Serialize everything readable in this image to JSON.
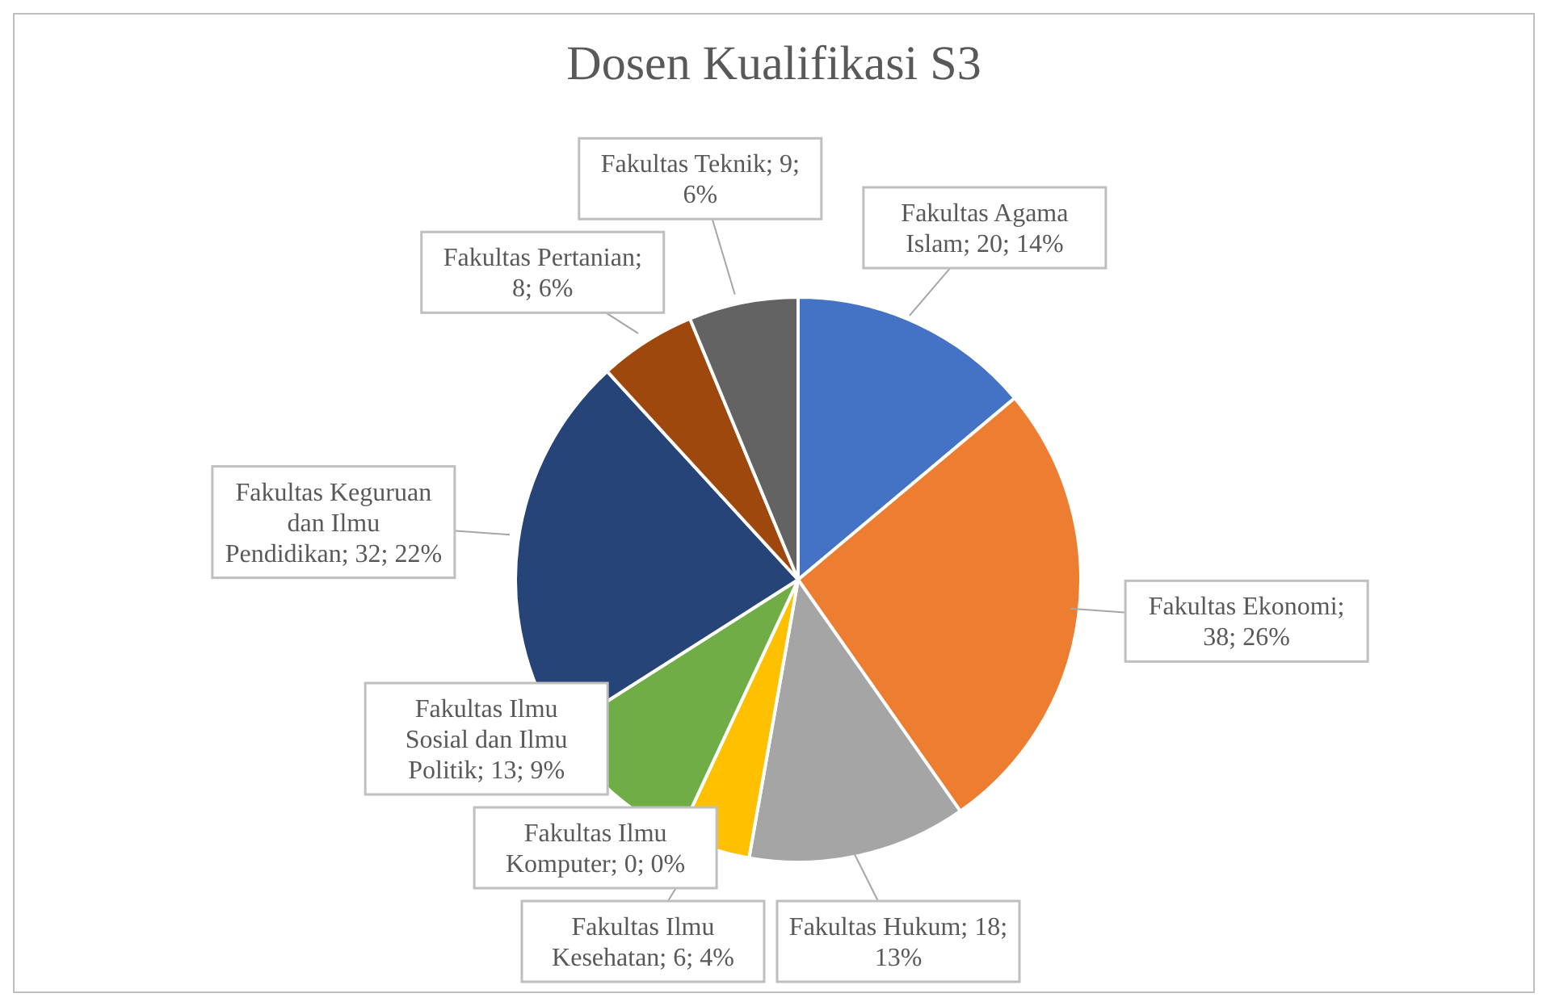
{
  "chart_data": {
    "type": "pie",
    "title": "Dosen Kualifikasi  S3",
    "categories": [
      "Fakultas Agama Islam",
      "Fakultas Ekonomi",
      "Fakultas Hukum",
      "Fakultas Ilmu Kesehatan",
      "Fakultas Ilmu Komputer",
      "Fakultas Ilmu Sosial dan Ilmu Politik",
      "Fakultas Keguruan dan Ilmu Pendidikan",
      "Fakultas Pertanian",
      "Fakultas Teknik"
    ],
    "values": [
      20,
      38,
      18,
      6,
      0,
      13,
      32,
      8,
      9
    ],
    "colors": [
      "#4472c4",
      "#ed7d31",
      "#a5a5a5",
      "#ffc000",
      "#5b9bd5",
      "#70ad47",
      "#264478",
      "#9e480e",
      "#636363"
    ],
    "value_labels": [
      "; 20; 14%",
      "; 38; 26%",
      "; 18; 13%",
      "; 6; 4%",
      "; 0; 0%",
      "; 13; 9%",
      "; 32; 22%",
      "; 8; 6%",
      "; 9; 6%"
    ]
  }
}
